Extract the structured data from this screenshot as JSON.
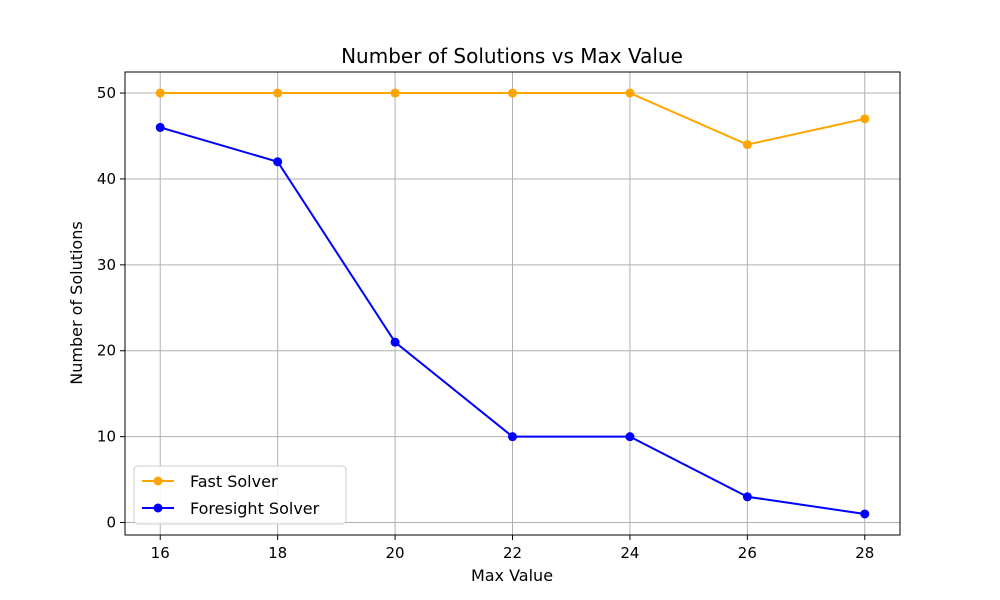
{
  "chart_data": {
    "type": "line",
    "title": "Number of Solutions vs Max Value",
    "xlabel": "Max Value",
    "ylabel": "Number of Solutions",
    "x": [
      16,
      18,
      20,
      22,
      24,
      26,
      28
    ],
    "xticks": [
      16,
      18,
      20,
      22,
      24,
      26,
      28
    ],
    "yticks": [
      0,
      10,
      20,
      30,
      40,
      50
    ],
    "xlim": [
      15.4,
      28.6
    ],
    "ylim": [
      -1.45,
      52.45
    ],
    "grid": true,
    "legend": "bottom-left",
    "series": [
      {
        "name": "Fast Solver",
        "color": "#ffa500",
        "marker": "circle",
        "values": [
          50,
          50,
          50,
          50,
          50,
          44,
          47
        ]
      },
      {
        "name": "Foresight Solver",
        "color": "#0000ff",
        "marker": "circle",
        "values": [
          46,
          42,
          21,
          10,
          10,
          3,
          1
        ]
      }
    ]
  }
}
